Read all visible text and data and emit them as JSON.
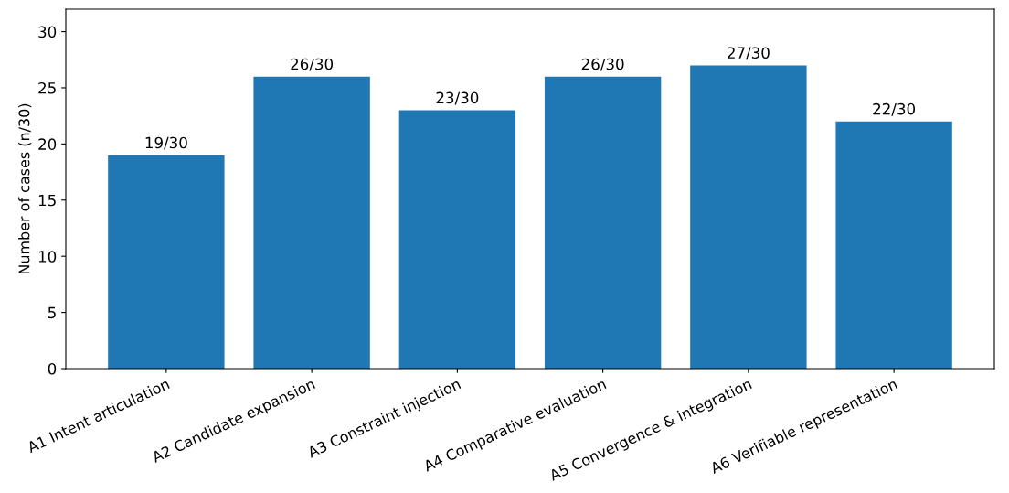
{
  "chart_data": {
    "type": "bar",
    "categories": [
      "A1 Intent articulation",
      "A2 Candidate expansion",
      "A3 Constraint injection",
      "A4 Comparative evaluation",
      "A5 Convergence & integration",
      "A6 Verifiable representation"
    ],
    "values": [
      19,
      26,
      23,
      26,
      27,
      22
    ],
    "value_labels": [
      "19/30",
      "26/30",
      "23/30",
      "26/30",
      "27/30",
      "22/30"
    ],
    "color": "#1f77b4",
    "ylabel": "Number of cases (n/30)",
    "ylim": [
      0,
      32
    ],
    "yticks": [
      0,
      5,
      10,
      15,
      20,
      25,
      30
    ],
    "grid": false,
    "legend": false
  }
}
